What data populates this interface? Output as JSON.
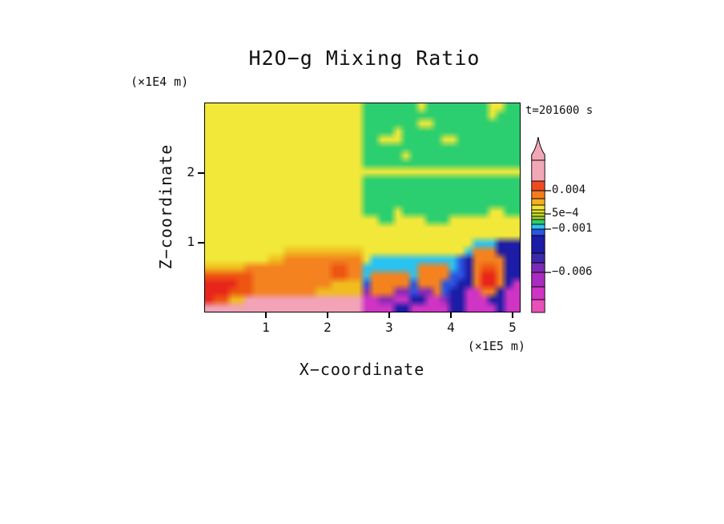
{
  "title": "H2O−g Mixing Ratio",
  "time_label": "t=201600 s",
  "axes": {
    "x": {
      "label": "X−coordinate",
      "unit": "(×1E5 m)",
      "ticks": [
        "1",
        "2",
        "3",
        "4",
        "5"
      ]
    },
    "z": {
      "label": "Z−coordinate",
      "unit": "(×1E4 m)",
      "ticks": [
        "1",
        "2"
      ]
    }
  },
  "chart_data": {
    "type": "heatmap",
    "title": "H2O−g Mixing Ratio",
    "xlabel": "X−coordinate (×1E5 m)",
    "ylabel": "Z−coordinate (×1E4 m)",
    "x_range": [
      0,
      5.15
    ],
    "z_range": [
      0,
      3.0
    ],
    "x_ticks": [
      1,
      2,
      3,
      4,
      5
    ],
    "z_ticks": [
      1,
      2
    ],
    "time": "t=201600 s",
    "legend_position": "right",
    "grid_cols": 40,
    "grid_rows": 26,
    "palette": {
      "Y": "#f2e839",
      "G": "#2bcf6f",
      "C": "#29c3f2",
      "B": "#2a55e0",
      "N": "#1c1ca6",
      "P": "#8a2bb8",
      "M": "#cf34c4",
      "O": "#f4821f",
      "D": "#ee5512",
      "R": "#e8251c",
      "K": "#f2a3b8",
      "T": "#f0bc1e"
    },
    "grid": [
      "YYYYYYYYYYYYYYYYYYYYGGGGGGGYGGGGGGGGYYGG",
      "YYYYYYYYYYYYYYYYYYYYGGGGGGGGGGGGGGGGYGGG",
      "YYYYYYYYYYYYYYYYYYYYGGGGGGGYYGGGGGGGGGGG",
      "YYYYYYYYYYYYYYYYYYYYGGGGYGGGGGGGGGGGGGGG",
      "YYYYYYYYYYYYYYYYYYYYGGYYYGGGGGYYGGGGGGGG",
      "YYYYYYYYYYYYYYYYYYYYGGGGGGGGGGGGGGGGGGGG",
      "YYYYYYYYYYYYYYYYYYYYGGGGGYGGGGGGGGGGGGGG",
      "YYYYYYYYYYYYYYYYYYYYGGGGGGGGGGGGGGGGGGGG",
      "YYYYYYYYYYYYYYYYYYYYYYYYYYYYYYYYYYYYYYYY",
      "YYYYYYYYYYYYYYYYYYYYGGGGGGGGGGGGGGGGGGGG",
      "YYYYYYYYYYYYYYYYYYYYGGGGGGGGGGGGGGGGGGGG",
      "YYYYYYYYYYYYYYYYYYYYGGGGGGGGGGGGGGGGGGGG",
      "YYYYYYYYYYYYYYYYYYYYGGGGGGGGGGGGGGGGGGGG",
      "YYYYYYYYYYYYYYYYYYYYGGGGYGGGGGGGGGGGYYGG",
      "YYYYYYYYYYYYYYYYYYYYYYGGYYYYGGGYYYYYYYYY",
      "YYYYYYYYYYYYYYYYYYYYYYYYYYYYYYYYYYYYYYYY",
      "YYYYYYYYYYYYYYYYYYYYYYYYYYYYYYYYYYYYYYYY",
      "YYYYYYYYYYYYYYYYYYYYYYYYYYYYYYYYYYCCCNNN",
      "YYYYYYYYYYTTTTTTTTTTYYYYYYYYYYYYYCOOONNN",
      "YYYYYYYYTTOOOOOOOOOOYCCCCCCCCCCCBNOOOONN",
      "TTTTTOOOOOOOOOOODDOOCCCCCCCOOOOCBNODDONN",
      "DDDDDDOOOOOOOOOODDOOCOOOOOCOOOOBBNORRONN",
      "RRRRDDOOOOOOOOOOTTTTBOOOOOBOOOBBNNORRONM",
      "RRRDDDOOOOOOOOTTTTTTPOOOPPBPPOBNNMMOONMM",
      "RDDTTKKKKKKKKKKKKKKKMMPPMMNNMMPNNMMMNNMM",
      "KKKKKKKKKKKKKKKKKKKKMMMMNNMMMMMNNMMMMNMM"
    ],
    "colorbar": {
      "arrow_color": "#f2a7b7",
      "segments": [
        {
          "color": "#f2a7b7",
          "h": 26
        },
        {
          "color": "#ee4a22",
          "h": 12
        },
        {
          "color": "#f47b20",
          "h": 10
        },
        {
          "color": "#f2b01e",
          "h": 8
        },
        {
          "color": "#f2e43a",
          "h": 6
        },
        {
          "color": "#dde22c",
          "h": 4
        },
        {
          "color": "#c6dc28",
          "h": 4
        },
        {
          "color": "#a4d22c",
          "h": 4
        },
        {
          "color": "#30cc6a",
          "h": 6
        },
        {
          "color": "#29c3f2",
          "h": 6
        },
        {
          "color": "#2a55e0",
          "h": 8
        },
        {
          "color": "#1c1ca6",
          "h": 22
        },
        {
          "color": "#3c28a8",
          "h": 12
        },
        {
          "color": "#7a2ab4",
          "h": 12
        },
        {
          "color": "#a82cc0",
          "h": 18
        },
        {
          "color": "#cf34c4",
          "h": 16
        },
        {
          "color": "#e84fb8",
          "h": 16
        }
      ],
      "labels": [
        {
          "text": "0.004",
          "offset": 38
        },
        {
          "text": "5e−4",
          "offset": 67
        },
        {
          "text": "−0.001",
          "offset": 86
        },
        {
          "text": "−0.006",
          "offset": 140
        }
      ]
    }
  }
}
